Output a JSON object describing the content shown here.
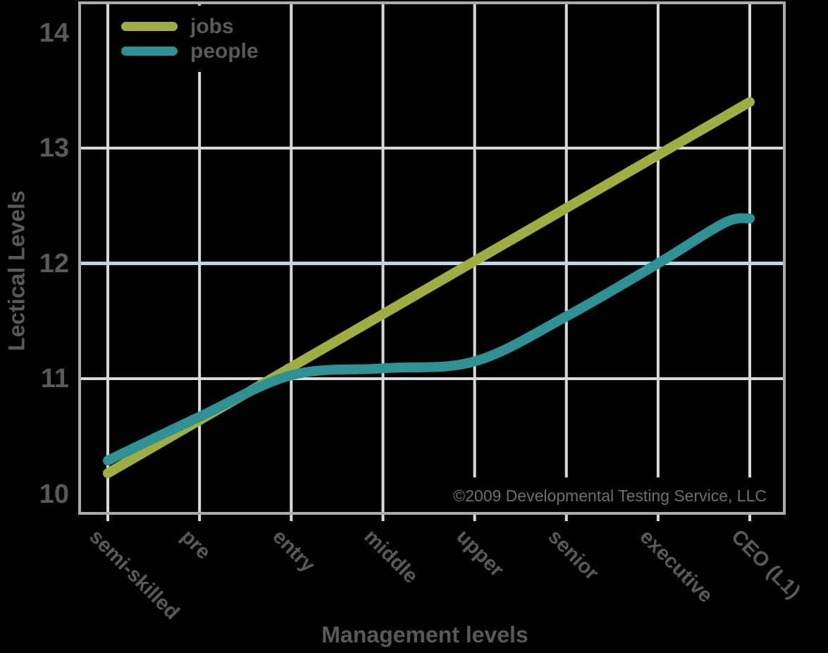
{
  "page": {
    "background": "#000000",
    "text_color": "#58595b",
    "muted_text_color": "#6d6f71"
  },
  "chart_data": {
    "type": "line",
    "title": "",
    "xlabel": "Management levels",
    "ylabel": "Lectical Levels",
    "categories": [
      "semi-skilled",
      "pre",
      "entry",
      "middle",
      "upper",
      "senior",
      "executive",
      "CEO (L1)"
    ],
    "yticks": [
      14,
      13,
      12,
      11,
      10
    ],
    "ylim": [
      9.8,
      14.3
    ],
    "grid": true,
    "gridline_color": "#d8d9da",
    "gray_gridlines": [
      13,
      11
    ],
    "highlight_gridline": {
      "value": 12,
      "color": "#b9d7eb"
    },
    "frame_color": "#a9abad",
    "legend": {
      "position": "top-left"
    },
    "series": [
      {
        "name": "jobs",
        "color": "#a0ad41",
        "values": [
          10.18,
          10.64,
          11.1,
          11.56,
          12.02,
          12.48,
          12.94,
          13.4
        ]
      },
      {
        "name": "people",
        "color": "#2e9193",
        "values": [
          10.29,
          10.67,
          11.03,
          11.09,
          11.15,
          11.54,
          12.0,
          12.39
        ],
        "shape_points": [
          [
            0,
            10.29
          ],
          [
            1,
            10.67
          ],
          [
            2,
            11.03
          ],
          [
            3,
            11.09
          ],
          [
            4,
            11.15
          ],
          [
            5,
            11.54
          ],
          [
            6,
            12.0
          ],
          [
            6.72,
            12.35
          ],
          [
            7,
            12.39
          ]
        ]
      }
    ],
    "annotation": "©2009 Developmental Testing Service, LLC"
  }
}
